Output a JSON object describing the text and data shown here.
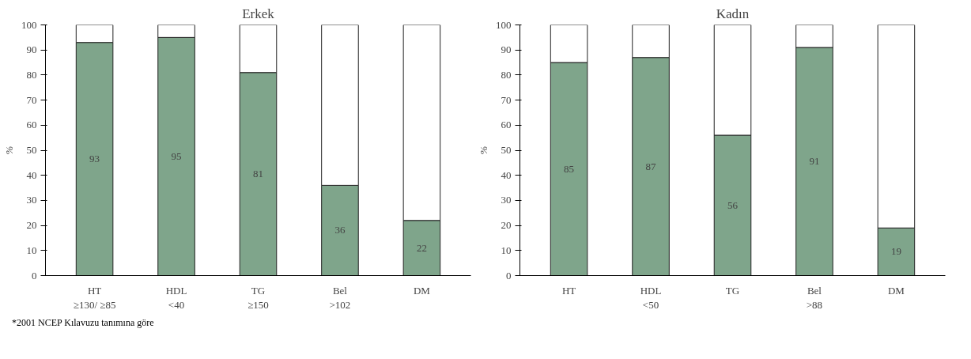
{
  "chart_data": [
    {
      "type": "bar",
      "title": "Erkek",
      "ylabel": "%",
      "stacked": true,
      "categories": [
        "HT\n≥130/ ≥85",
        "HDL\n<40",
        "TG\n≥150",
        "Bel\n>102",
        "DM"
      ],
      "series": [
        {
          "color": "#7fa58b",
          "values": [
            93,
            95,
            81,
            36,
            22
          ],
          "value_labels": [
            "93",
            "95",
            "81",
            "36",
            "22"
          ]
        },
        {
          "color": "#ffffff",
          "values": [
            7,
            5,
            19,
            64,
            78
          ]
        }
      ],
      "ylim": [
        0,
        100
      ],
      "yticks": [
        0,
        10,
        20,
        30,
        40,
        50,
        60,
        70,
        80,
        90,
        100
      ],
      "grid": false,
      "annotations": [
        "*2001 NCEP Kılavuzu tanımına göre"
      ]
    },
    {
      "type": "bar",
      "title": "Kadın",
      "ylabel": "%",
      "stacked": true,
      "categories": [
        "HT",
        "HDL\n<50",
        "TG",
        "Bel\n>88",
        "DM"
      ],
      "series": [
        {
          "color": "#7fa58b",
          "values": [
            85,
            87,
            56,
            91,
            19
          ],
          "value_labels": [
            "85",
            "87",
            "56",
            "91",
            "19"
          ]
        },
        {
          "color": "#ffffff",
          "values": [
            15,
            13,
            44,
            9,
            81
          ]
        }
      ],
      "ylim": [
        0,
        100
      ],
      "yticks": [
        0,
        10,
        20,
        30,
        40,
        50,
        60,
        70,
        80,
        90,
        100
      ],
      "grid": false
    }
  ]
}
